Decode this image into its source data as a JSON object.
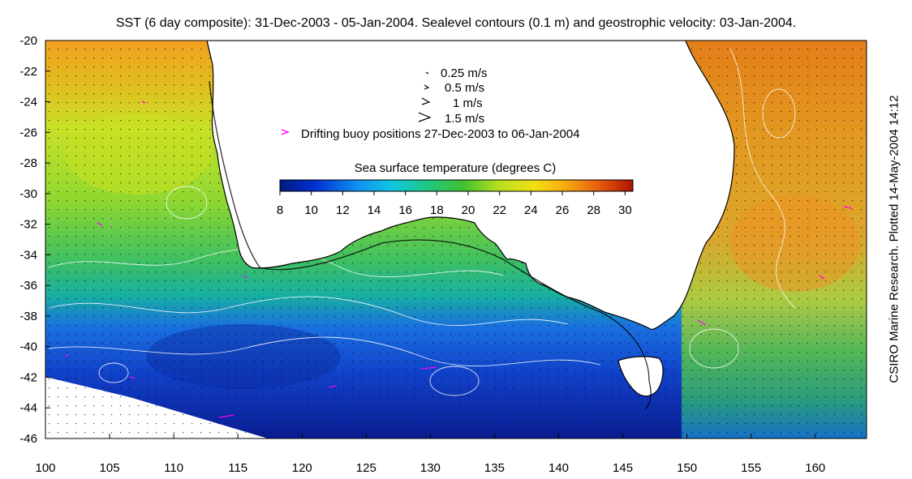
{
  "title": "SST (6 day composite): 31-Dec-2003 - 05-Jan-2004. Sealevel contours (0.1 m) and geostrophic velocity: 03-Jan-2004.",
  "credit": "CSIRO Marine Research. Plotted 14-May-2004 14:12",
  "map": {
    "lon_range": [
      100,
      164
    ],
    "lat_range": [
      -46,
      -20
    ],
    "x_ticks": [
      "100",
      "105",
      "110",
      "115",
      "120",
      "125",
      "130",
      "135",
      "140",
      "145",
      "150",
      "155",
      "160"
    ],
    "y_ticks": [
      "-20",
      "-22",
      "-24",
      "-26",
      "-28",
      "-30",
      "-32",
      "-34",
      "-36",
      "-38",
      "-40",
      "-42",
      "-44",
      "-46"
    ],
    "land_color": "#ffffff",
    "coast_color": "#000000",
    "contour_color": "#ffffff",
    "buoy_color": "#ff00ff"
  },
  "legend": {
    "velocity": [
      {
        "label": "0.25 m/s"
      },
      {
        "label": "0.5 m/s"
      },
      {
        "label": "1 m/s"
      },
      {
        "label": "1.5 m/s"
      }
    ],
    "buoy_label": "Drifting buoy positions 27-Dec-2003 to 06-Jan-2004",
    "colorbar_title": "Sea surface temperature (degrees C)",
    "colorbar_ticks": [
      "8",
      "10",
      "12",
      "14",
      "16",
      "18",
      "20",
      "22",
      "24",
      "26",
      "28",
      "30"
    ],
    "colorbar_range": [
      8,
      30.5
    ]
  }
}
